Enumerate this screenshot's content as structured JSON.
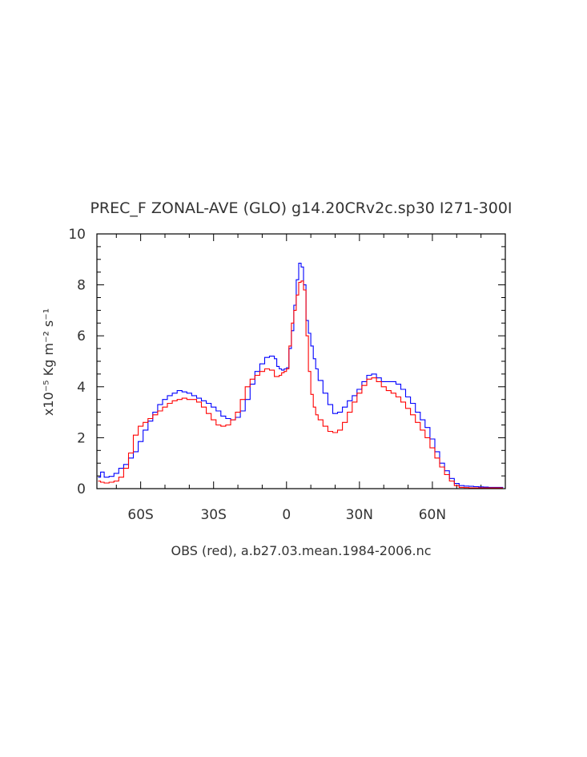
{
  "chart_data": {
    "type": "line",
    "title": "PREC_F ZONAL-AVE (GLO) g14.20CRv2c.sp30 Ι271-300Ι",
    "xlabel": "OBS (red), a.b27.03.mean.1984-2006.nc",
    "ylabel": "x10⁻⁵ Kg m⁻² s⁻¹",
    "xlim": [
      -78,
      90
    ],
    "ylim": [
      0,
      10
    ],
    "yticks": [
      0,
      2,
      4,
      6,
      8,
      10
    ],
    "ytick_labels": [
      "0",
      "2",
      "4",
      "6",
      "8",
      "10"
    ],
    "xticks": [
      -60,
      -30,
      0,
      30,
      60
    ],
    "xtick_labels": [
      "60S",
      "30S",
      "0",
      "30N",
      "60N"
    ],
    "grid": false,
    "series": [
      {
        "name": "g14.20CRv2c.sp30",
        "color": "#0000ff",
        "x": [
          -77.5,
          -76.5,
          -75,
          -73,
          -71,
          -69,
          -67,
          -65,
          -63,
          -61,
          -59,
          -57,
          -55,
          -53,
          -51,
          -49,
          -47,
          -45,
          -43,
          -41,
          -39,
          -37,
          -35,
          -33,
          -31,
          -29,
          -27,
          -25,
          -23,
          -21,
          -19,
          -17,
          -15,
          -13,
          -11,
          -9,
          -7,
          -5,
          -4,
          -3,
          -2,
          -1,
          0,
          1,
          2,
          3,
          4,
          5,
          6,
          7,
          8,
          9,
          10,
          11,
          12,
          13,
          15,
          17,
          19,
          21,
          23,
          25,
          27,
          29,
          31,
          33,
          35,
          37,
          39,
          41,
          43,
          45,
          47,
          49,
          51,
          53,
          55,
          57,
          59,
          61,
          63,
          65,
          67,
          69,
          71,
          73,
          75,
          77,
          79,
          81,
          83,
          85,
          87,
          89
        ],
        "values": [
          0.45,
          0.65,
          0.45,
          0.48,
          0.6,
          0.8,
          0.95,
          1.2,
          1.45,
          1.85,
          2.3,
          2.65,
          3.0,
          3.3,
          3.5,
          3.65,
          3.75,
          3.85,
          3.8,
          3.75,
          3.65,
          3.55,
          3.45,
          3.35,
          3.2,
          3.05,
          2.85,
          2.75,
          2.7,
          2.8,
          3.05,
          3.5,
          4.1,
          4.6,
          4.9,
          5.15,
          5.2,
          5.1,
          4.8,
          4.7,
          4.65,
          4.7,
          4.75,
          5.5,
          6.2,
          7.2,
          8.2,
          8.85,
          8.7,
          8.0,
          6.6,
          6.1,
          5.6,
          5.1,
          4.7,
          4.25,
          3.75,
          3.3,
          2.95,
          3.0,
          3.2,
          3.45,
          3.65,
          3.9,
          4.2,
          4.45,
          4.5,
          4.35,
          4.2,
          4.2,
          4.2,
          4.1,
          3.9,
          3.6,
          3.35,
          3.0,
          2.7,
          2.4,
          1.95,
          1.45,
          1.0,
          0.7,
          0.4,
          0.2,
          0.12,
          0.1,
          0.09,
          0.08,
          0.07,
          0.06,
          0.05,
          0.05,
          0.05,
          0.04
        ],
        "x_offset": 0
      },
      {
        "name": "OBS",
        "color": "#ff0000",
        "x": [
          -77.5,
          -76.5,
          -75,
          -73,
          -71,
          -69,
          -67,
          -65,
          -63,
          -61,
          -59,
          -57,
          -55,
          -53,
          -51,
          -49,
          -47,
          -45,
          -43,
          -41,
          -39,
          -37,
          -35,
          -33,
          -31,
          -29,
          -27,
          -25,
          -23,
          -21,
          -19,
          -17,
          -15,
          -13,
          -11,
          -9,
          -7,
          -5,
          -4,
          -3,
          -2,
          -1,
          0,
          1,
          2,
          3,
          4,
          5,
          6,
          7,
          8,
          9,
          10,
          11,
          12,
          13,
          15,
          17,
          19,
          21,
          23,
          25,
          27,
          29,
          31,
          33,
          35,
          37,
          39,
          41,
          43,
          45,
          47,
          49,
          51,
          53,
          55,
          57,
          59,
          61,
          63,
          65,
          67,
          69,
          71,
          73,
          75,
          77,
          79,
          81,
          83,
          85,
          87,
          89
        ],
        "values": [
          0.3,
          0.25,
          0.22,
          0.25,
          0.3,
          0.45,
          0.8,
          1.4,
          2.1,
          2.45,
          2.6,
          2.75,
          2.9,
          3.05,
          3.2,
          3.35,
          3.45,
          3.5,
          3.55,
          3.5,
          3.5,
          3.4,
          3.2,
          2.95,
          2.7,
          2.5,
          2.45,
          2.5,
          2.7,
          3.0,
          3.5,
          4.0,
          4.3,
          4.45,
          4.6,
          4.7,
          4.65,
          4.4,
          4.4,
          4.45,
          4.55,
          4.6,
          4.7,
          5.6,
          6.5,
          7.0,
          7.6,
          8.1,
          8.15,
          7.8,
          6.0,
          4.6,
          3.7,
          3.2,
          2.9,
          2.7,
          2.45,
          2.25,
          2.2,
          2.3,
          2.6,
          3.0,
          3.4,
          3.75,
          4.05,
          4.3,
          4.35,
          4.2,
          4.0,
          3.85,
          3.75,
          3.6,
          3.4,
          3.15,
          2.9,
          2.6,
          2.3,
          2.0,
          1.6,
          1.2,
          0.85,
          0.55,
          0.3,
          0.12,
          0.05,
          0.04,
          0.03,
          0.03,
          0.03,
          0.03,
          0.03,
          0.03,
          0.03,
          0.03
        ],
        "x_offset": 0
      }
    ]
  }
}
